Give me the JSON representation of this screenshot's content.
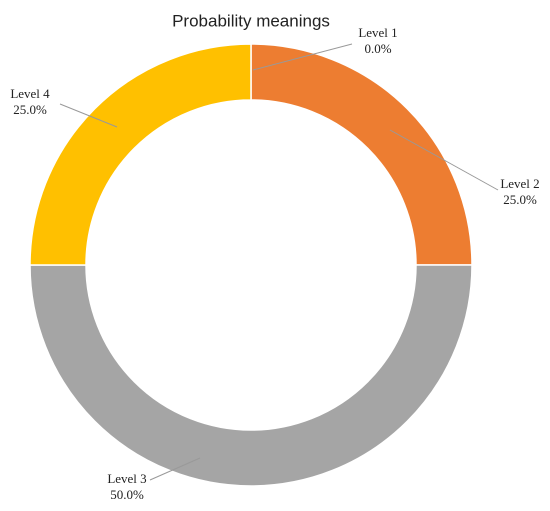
{
  "chart_data": {
    "type": "donut",
    "title": "Probability meanings",
    "categories": [
      "Level 1",
      "Level 2",
      "Level 3",
      "Level 4"
    ],
    "values": [
      0,
      25,
      50,
      25
    ],
    "value_labels": [
      "0.0%",
      "25.0%",
      "50.0%",
      "25.0%"
    ],
    "colors": [
      "#4472c4",
      "#ed7d31",
      "#a5a5a5",
      "#ffc000"
    ]
  }
}
